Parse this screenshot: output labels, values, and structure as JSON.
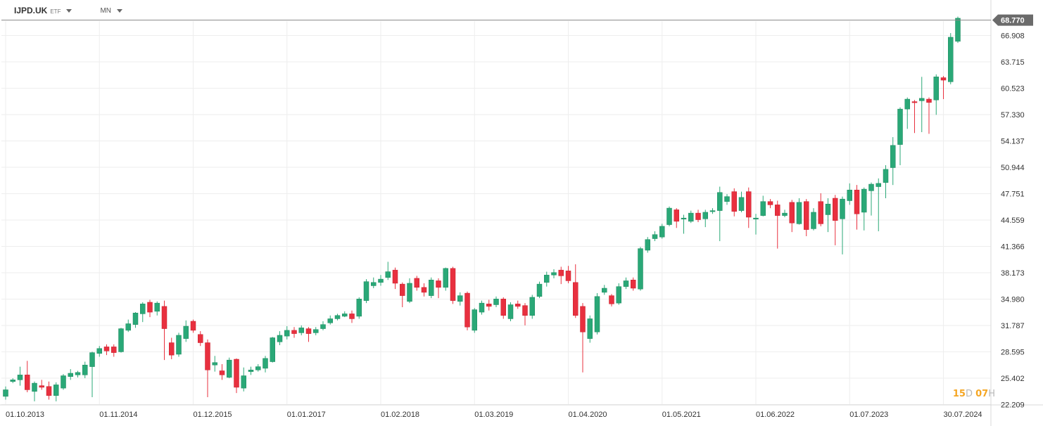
{
  "header": {
    "symbol": "IJPD.UK",
    "badge": "ETF",
    "interval": "MN"
  },
  "countdown": {
    "days": "15",
    "days_unit": "D",
    "hours": "07",
    "hours_unit": "H"
  },
  "colors": {
    "up": "#2aa877",
    "down": "#e8303f",
    "grid": "#eeeeee",
    "axis": "#d9d9d9",
    "price_tag": "#6b6b6b"
  },
  "chart_data": {
    "type": "candlestick",
    "last_price_label": "68.770",
    "last_price": 68.77,
    "y_ticks": [
      "66.908",
      "63.715",
      "60.523",
      "57.330",
      "54.137",
      "50.944",
      "47.751",
      "44.559",
      "41.366",
      "38.173",
      "34.980",
      "31.787",
      "28.595",
      "25.402",
      "22.209"
    ],
    "ylim": [
      22.209,
      69.2
    ],
    "x_ticks": [
      {
        "label": "01.10.2013",
        "index": 0
      },
      {
        "label": "01.11.2014",
        "index": 13
      },
      {
        "label": "01.12.2015",
        "index": 26
      },
      {
        "label": "01.01.2017",
        "index": 39
      },
      {
        "label": "01.02.2018",
        "index": 52
      },
      {
        "label": "01.03.2019",
        "index": 65
      },
      {
        "label": "01.04.2020",
        "index": 78
      },
      {
        "label": "01.05.2021",
        "index": 91
      },
      {
        "label": "01.06.2022",
        "index": 104
      },
      {
        "label": "01.07.2023",
        "index": 117
      },
      {
        "label": "30.07.2024",
        "index": 130
      }
    ],
    "candles": [
      [
        23.2,
        24.0,
        22.8,
        24.4
      ],
      [
        25.0,
        25.2,
        24.8,
        25.4
      ],
      [
        25.2,
        25.8,
        24.5,
        26.8
      ],
      [
        25.8,
        24.0,
        23.7,
        27.5
      ],
      [
        23.8,
        24.8,
        22.6,
        25.0
      ],
      [
        24.5,
        24.3,
        24.0,
        25.2
      ],
      [
        24.4,
        23.3,
        22.8,
        25.0
      ],
      [
        23.3,
        24.6,
        22.6,
        24.9
      ],
      [
        24.2,
        25.7,
        24.0,
        25.9
      ],
      [
        25.6,
        26.0,
        25.2,
        26.5
      ],
      [
        25.8,
        26.1,
        25.5,
        26.3
      ],
      [
        25.8,
        27.0,
        25.4,
        27.4
      ],
      [
        26.8,
        28.5,
        23.1,
        28.6
      ],
      [
        28.4,
        29.0,
        28.0,
        29.3
      ],
      [
        29.2,
        28.7,
        28.2,
        29.5
      ],
      [
        29.2,
        28.5,
        28.0,
        29.5
      ],
      [
        28.6,
        31.4,
        28.5,
        31.5
      ],
      [
        31.2,
        32.0,
        31.0,
        32.5
      ],
      [
        31.9,
        33.3,
        31.5,
        33.4
      ],
      [
        33.2,
        34.4,
        32.2,
        34.6
      ],
      [
        34.6,
        33.4,
        32.8,
        34.9
      ],
      [
        33.5,
        34.5,
        33.0,
        34.7
      ],
      [
        34.1,
        31.4,
        27.6,
        34.8
      ],
      [
        29.7,
        28.2,
        27.7,
        30.3
      ],
      [
        28.3,
        30.6,
        28.0,
        30.9
      ],
      [
        30.2,
        31.7,
        29.8,
        32.4
      ],
      [
        32.3,
        31.2,
        30.9,
        32.5
      ],
      [
        30.7,
        29.7,
        29.3,
        31.1
      ],
      [
        29.7,
        26.4,
        23.1,
        30.1
      ],
      [
        27.0,
        27.3,
        26.2,
        28.1
      ],
      [
        26.3,
        25.8,
        25.2,
        27.1
      ],
      [
        25.5,
        27.6,
        25.4,
        27.9
      ],
      [
        27.7,
        24.3,
        23.6,
        27.8
      ],
      [
        24.2,
        25.7,
        23.8,
        26.7
      ],
      [
        26.2,
        26.4,
        25.8,
        26.8
      ],
      [
        26.4,
        26.8,
        26.2,
        27.1
      ],
      [
        26.6,
        27.8,
        26.1,
        28.1
      ],
      [
        27.4,
        30.3,
        27.3,
        30.4
      ],
      [
        29.8,
        30.6,
        29.4,
        31.1
      ],
      [
        30.5,
        31.2,
        30.1,
        31.7
      ],
      [
        31.2,
        30.8,
        30.3,
        31.6
      ],
      [
        30.9,
        31.5,
        30.6,
        31.8
      ],
      [
        31.4,
        30.8,
        29.8,
        31.6
      ],
      [
        30.9,
        31.3,
        30.6,
        31.6
      ],
      [
        31.4,
        31.9,
        31.2,
        32.3
      ],
      [
        32.1,
        32.6,
        31.9,
        33.0
      ],
      [
        32.6,
        33.0,
        32.4,
        33.2
      ],
      [
        32.9,
        33.2,
        32.8,
        33.5
      ],
      [
        33.2,
        32.6,
        32.1,
        33.6
      ],
      [
        32.9,
        35.0,
        32.6,
        35.2
      ],
      [
        34.8,
        37.1,
        34.5,
        37.4
      ],
      [
        36.6,
        37.0,
        36.3,
        37.6
      ],
      [
        37.0,
        37.4,
        36.6,
        37.9
      ],
      [
        37.6,
        38.3,
        37.3,
        39.5
      ],
      [
        38.5,
        36.9,
        36.2,
        38.8
      ],
      [
        36.8,
        35.4,
        34.0,
        37.0
      ],
      [
        34.7,
        36.9,
        34.5,
        37.5
      ],
      [
        37.5,
        36.4,
        36.0,
        37.8
      ],
      [
        36.4,
        35.8,
        35.3,
        36.9
      ],
      [
        35.4,
        37.3,
        35.1,
        37.6
      ],
      [
        37.2,
        36.4,
        35.1,
        37.5
      ],
      [
        36.4,
        38.7,
        36.0,
        38.8
      ],
      [
        38.7,
        34.8,
        34.4,
        38.9
      ],
      [
        34.7,
        35.4,
        34.2,
        35.8
      ],
      [
        35.7,
        31.6,
        31.2,
        35.9
      ],
      [
        31.2,
        33.7,
        30.9,
        33.9
      ],
      [
        33.4,
        34.5,
        33.1,
        34.8
      ],
      [
        34.4,
        34.1,
        33.6,
        34.9
      ],
      [
        34.3,
        35.0,
        34.0,
        35.3
      ],
      [
        35.0,
        33.0,
        32.6,
        35.2
      ],
      [
        32.6,
        34.3,
        32.3,
        34.6
      ],
      [
        34.4,
        34.1,
        33.8,
        34.8
      ],
      [
        34.2,
        33.0,
        31.8,
        34.5
      ],
      [
        33.0,
        35.2,
        32.6,
        35.5
      ],
      [
        35.3,
        36.8,
        35.1,
        37.1
      ],
      [
        37.0,
        37.9,
        36.5,
        38.3
      ],
      [
        37.9,
        38.2,
        37.5,
        38.6
      ],
      [
        38.5,
        37.8,
        36.8,
        38.9
      ],
      [
        38.4,
        37.2,
        36.9,
        39.0
      ],
      [
        37.0,
        33.0,
        32.7,
        39.2
      ],
      [
        34.1,
        31.0,
        26.1,
        34.5
      ],
      [
        30.2,
        32.6,
        29.7,
        33.0
      ],
      [
        31.0,
        35.3,
        30.7,
        35.7
      ],
      [
        35.8,
        36.3,
        35.5,
        36.7
      ],
      [
        35.4,
        34.4,
        34.1,
        35.6
      ],
      [
        34.5,
        36.5,
        34.3,
        36.9
      ],
      [
        36.5,
        37.2,
        36.2,
        37.6
      ],
      [
        37.3,
        36.3,
        36.0,
        37.6
      ],
      [
        36.2,
        41.1,
        36.0,
        41.3
      ],
      [
        40.9,
        42.2,
        40.6,
        42.5
      ],
      [
        42.3,
        42.8,
        42.0,
        43.2
      ],
      [
        42.5,
        43.8,
        42.3,
        44.1
      ],
      [
        44.0,
        46.0,
        43.8,
        46.2
      ],
      [
        45.8,
        44.4,
        43.6,
        46.0
      ],
      [
        44.8,
        44.8,
        42.9,
        45.2
      ],
      [
        44.4,
        45.4,
        44.2,
        45.7
      ],
      [
        45.4,
        44.6,
        44.3,
        45.8
      ],
      [
        44.7,
        45.5,
        43.7,
        45.8
      ],
      [
        45.6,
        45.7,
        45.3,
        46.0
      ],
      [
        45.7,
        47.9,
        42.0,
        48.6
      ],
      [
        46.8,
        47.4,
        46.4,
        47.7
      ],
      [
        48.0,
        45.6,
        45.0,
        48.4
      ],
      [
        45.7,
        47.3,
        45.5,
        48.0
      ],
      [
        48.0,
        44.9,
        43.6,
        48.5
      ],
      [
        44.8,
        44.8,
        42.8,
        45.3
      ],
      [
        45.1,
        46.8,
        45.0,
        47.5
      ],
      [
        46.8,
        46.4,
        46.0,
        47.1
      ],
      [
        46.4,
        45.1,
        41.1,
        46.9
      ],
      [
        45.1,
        45.4,
        44.9,
        45.8
      ],
      [
        46.7,
        44.2,
        43.1,
        47.0
      ],
      [
        44.1,
        46.7,
        44.0,
        47.2
      ],
      [
        46.8,
        43.4,
        42.6,
        47.1
      ],
      [
        43.5,
        45.5,
        43.3,
        46.0
      ],
      [
        46.8,
        44.1,
        43.8,
        47.8
      ],
      [
        45.2,
        46.5,
        43.1,
        47.2
      ],
      [
        47.2,
        44.5,
        41.5,
        47.6
      ],
      [
        44.7,
        47.1,
        40.4,
        47.4
      ],
      [
        46.9,
        48.2,
        46.4,
        49.0
      ],
      [
        48.2,
        45.3,
        43.4,
        48.8
      ],
      [
        45.5,
        48.3,
        43.3,
        48.5
      ],
      [
        48.1,
        48.9,
        45.1,
        49.1
      ],
      [
        48.6,
        49.0,
        43.2,
        49.6
      ],
      [
        49.1,
        50.7,
        47.2,
        51.2
      ],
      [
        50.9,
        53.6,
        48.8,
        54.6
      ],
      [
        53.7,
        58.0,
        51.2,
        58.2
      ],
      [
        58.0,
        59.2,
        55.6,
        59.4
      ],
      [
        58.9,
        58.8,
        55.1,
        59.1
      ],
      [
        59.0,
        59.3,
        55.2,
        61.9
      ],
      [
        59.2,
        58.8,
        55.0,
        59.4
      ],
      [
        59.1,
        61.9,
        57.3,
        62.2
      ],
      [
        61.8,
        61.5,
        59.2,
        62.0
      ],
      [
        61.3,
        66.7,
        61.0,
        67.2
      ],
      [
        66.2,
        69.0,
        66.0,
        69.2
      ]
    ]
  }
}
